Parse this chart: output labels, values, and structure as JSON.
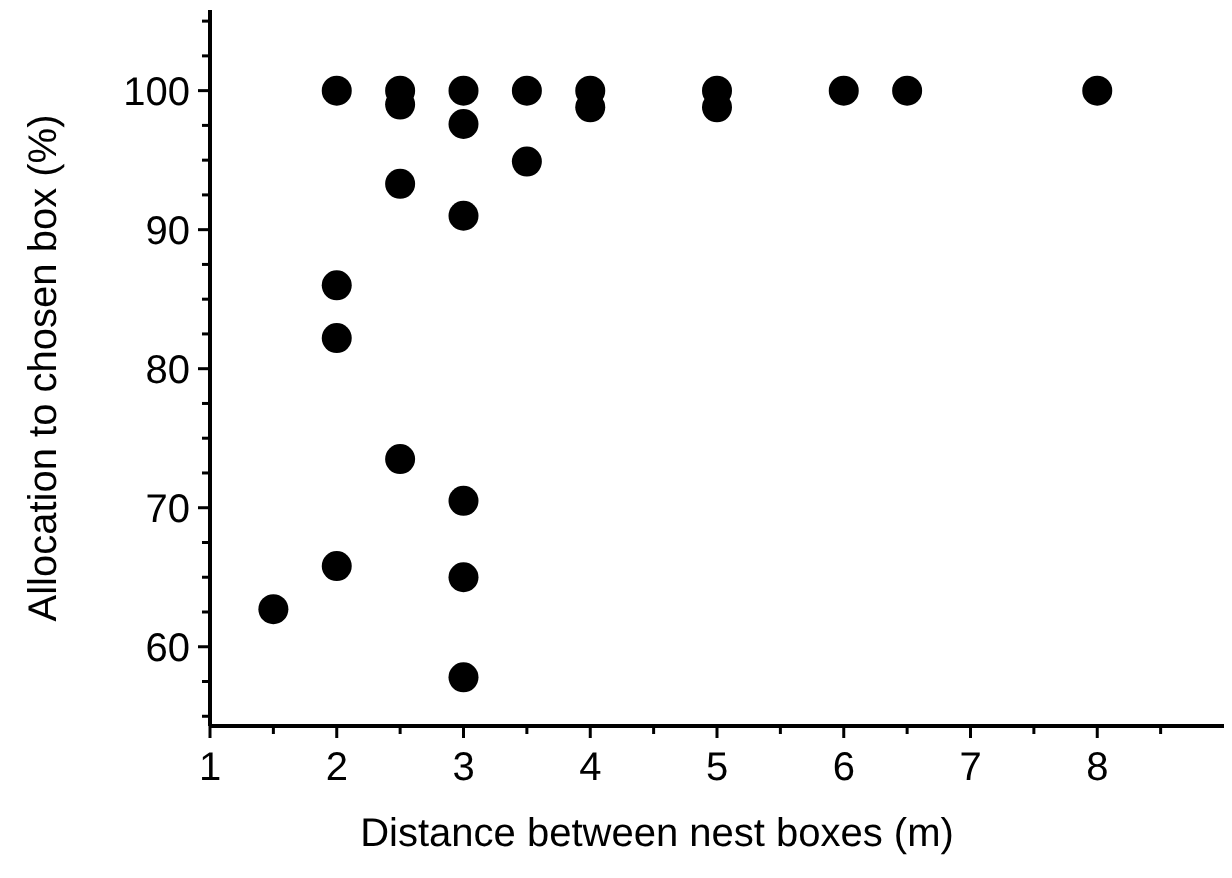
{
  "chart_data": {
    "type": "scatter",
    "xlabel": "Distance between nest boxes (m)",
    "ylabel": "Allocation to chosen box (%)",
    "x": [
      1.5,
      2,
      2,
      2,
      2,
      2.5,
      2.5,
      2.5,
      2.5,
      3,
      3,
      3,
      3,
      3,
      3,
      3.5,
      3.5,
      4,
      4,
      5,
      5,
      6,
      6.5,
      8
    ],
    "series": [
      {
        "color": "#000000",
        "values": [
          62.7,
          100,
          86,
          82.2,
          65.8,
          100,
          99,
          93.3,
          73.5,
          100,
          97.6,
          91,
          70.5,
          65,
          57.8,
          94.9,
          100,
          98.8,
          100,
          98.8,
          100,
          100,
          100,
          100
        ]
      }
    ],
    "xlim": [
      1,
      9
    ],
    "ylim": [
      54.3,
      105.8
    ],
    "xticks": [
      1,
      {
        "value": 1.5,
        "label": null
      },
      2,
      {
        "value": 2.5,
        "label": null
      },
      3,
      {
        "value": 3.5,
        "label": null
      },
      4,
      {
        "value": 4.5,
        "label": null
      },
      5,
      {
        "value": 5.5,
        "label": null
      },
      6,
      {
        "value": 6.5,
        "label": null
      },
      7,
      {
        "value": 7.5,
        "label": null
      },
      8,
      {
        "value": 8.5,
        "label": null
      }
    ],
    "yticks": [
      {
        "value": 55,
        "label": null
      },
      {
        "value": 57.5,
        "label": null
      },
      60,
      {
        "value": 62.5,
        "label": null
      },
      {
        "value": 65,
        "label": null
      },
      {
        "value": 67.5,
        "label": null
      },
      70,
      {
        "value": 72.5,
        "label": null
      },
      {
        "value": 75,
        "label": null
      },
      {
        "value": 77.5,
        "label": null
      },
      80,
      {
        "value": 82.5,
        "label": null
      },
      {
        "value": 85,
        "label": null
      },
      {
        "value": 87.5,
        "label": null
      },
      90,
      {
        "value": 92.5,
        "label": null
      },
      {
        "value": 95,
        "label": null
      },
      {
        "value": 97.5,
        "label": null
      },
      100,
      {
        "value": 102.5,
        "label": null
      },
      {
        "value": 105,
        "label": null
      }
    ],
    "grid": false,
    "marker": "circle"
  }
}
